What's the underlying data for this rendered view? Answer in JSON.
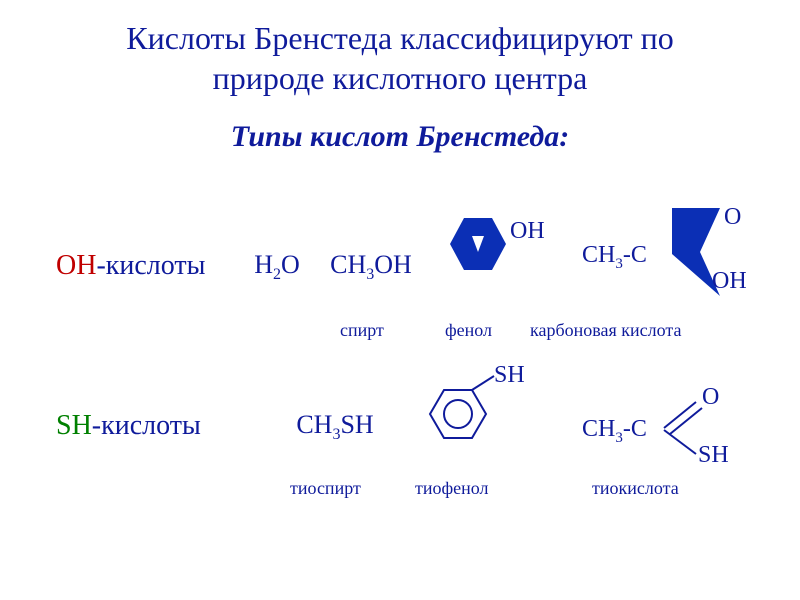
{
  "title": {
    "line1": "Кислоты Бренстеда классифицируют по",
    "line2": "природе кислотного центра",
    "color": "#0f1b9b",
    "fontsize": 32
  },
  "subtitle": {
    "text": "Типы кислот Бренстеда:",
    "color": "#0f1b9b",
    "fontsize": 30
  },
  "colors": {
    "brand": "#0f1b9b",
    "oh_prefix": "#c00000",
    "sh_prefix": "#008000",
    "blob_fill": "#0b2fb5",
    "background": "#ffffff",
    "text": "#0f1b9b"
  },
  "row1": {
    "name_prefix": "ОН",
    "name_suffix": "-кислоты",
    "items": {
      "water": {
        "formula_html": "H<sub>2</sub>O"
      },
      "methanol": {
        "formula_html": "CH<sub>3</sub>OH"
      },
      "phenol": {
        "attached_text": "OH",
        "blob": {
          "type": "hexagon_blob",
          "fill": "#0b2fb5",
          "size": 66
        }
      },
      "carboxylic": {
        "top_O": "O",
        "left_formula_html": "CH<sub>3</sub>-C",
        "bottom_OH": "OH",
        "blob": {
          "type": "wedge_blob",
          "fill": "#0b2fb5",
          "size": 56
        }
      }
    },
    "labels": {
      "spirt": "спирт",
      "fenol": "фенол",
      "karb": "карбоновая кислота"
    }
  },
  "row2": {
    "name_prefix": "SH",
    "name_suffix": "-кислоты",
    "items": {
      "thiol": {
        "formula_html": "CH<sub>3</sub>SH"
      },
      "thiophenol": {
        "attached_text": "SH",
        "ring": {
          "type": "benzene",
          "stroke": "#0f1b9b",
          "size": 62
        }
      },
      "thioacid": {
        "top_O": "O",
        "left_formula_html": "CH<sub>3</sub>-C",
        "bottom_SH": "SH",
        "branch": {
          "stroke": "#0f1b9b"
        }
      }
    },
    "labels": {
      "tiospirt": "тиоспирт",
      "tiofenol": "тиофенол",
      "tiokis": "тиокислота"
    }
  },
  "typography": {
    "row_name_fontsize": 28,
    "formula_fontsize": 26,
    "label_fontsize": 18,
    "font_family": "Times New Roman"
  }
}
